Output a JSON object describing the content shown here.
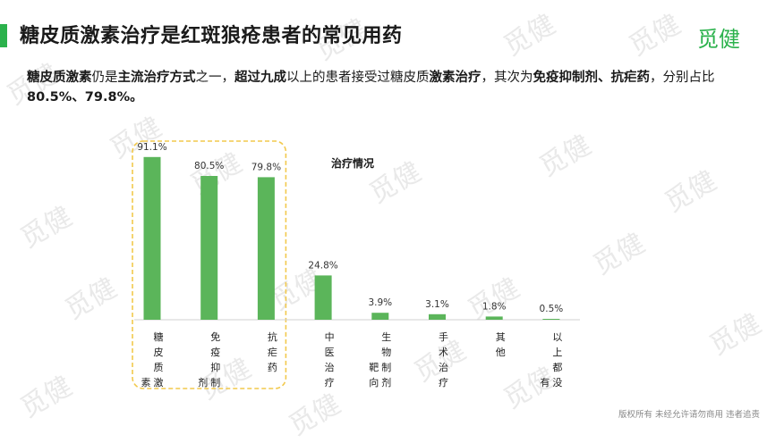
{
  "header": {
    "title": "糖皮质激素治疗是红斑狼疮患者的常见用药",
    "brand": "觅健",
    "accent_color": "#2bb24c"
  },
  "summary": {
    "parts": [
      {
        "text": "糖皮质激素",
        "bold": true
      },
      {
        "text": "仍是",
        "bold": false
      },
      {
        "text": "主流治疗方式",
        "bold": true
      },
      {
        "text": "之一，",
        "bold": false
      },
      {
        "text": "超过九成",
        "bold": true
      },
      {
        "text": "以上的患者接受过糖皮质",
        "bold": false
      },
      {
        "text": "激素治疗",
        "bold": true
      },
      {
        "text": "，其次为",
        "bold": false
      },
      {
        "text": "免疫抑制剂、抗疟药",
        "bold": true
      },
      {
        "text": "，分别占比",
        "bold": false
      },
      {
        "text": "80.5%、79.8%。",
        "bold": true
      }
    ]
  },
  "chart_data": {
    "type": "bar",
    "title": "治疗情况",
    "categories": [
      "糖皮质激素",
      "免疫抑制剂",
      "抗疟药",
      "中医治疗",
      "生物制剂靶向",
      "手术治疗",
      "其他",
      "以上都没有"
    ],
    "values": [
      91.1,
      80.5,
      79.8,
      24.8,
      3.9,
      3.1,
      1.8,
      0.5
    ],
    "data_labels": [
      "91.1%",
      "80.5%",
      "79.8%",
      "24.8%",
      "3.9%",
      "3.1%",
      "1.8%",
      "0.5%"
    ],
    "ylim": [
      0,
      100
    ],
    "bar_color": "#5bb55a",
    "highlight_color": "#f2c94c",
    "highlight_categories": [
      "糖皮质激素",
      "免疫抑制剂",
      "抗疟药"
    ],
    "grid": false,
    "legend": "none"
  },
  "watermark": {
    "text": "觅健",
    "color": "#e9e9e9"
  },
  "footer": {
    "text": "版权所有 未经允许请勿商用 违者追责"
  }
}
